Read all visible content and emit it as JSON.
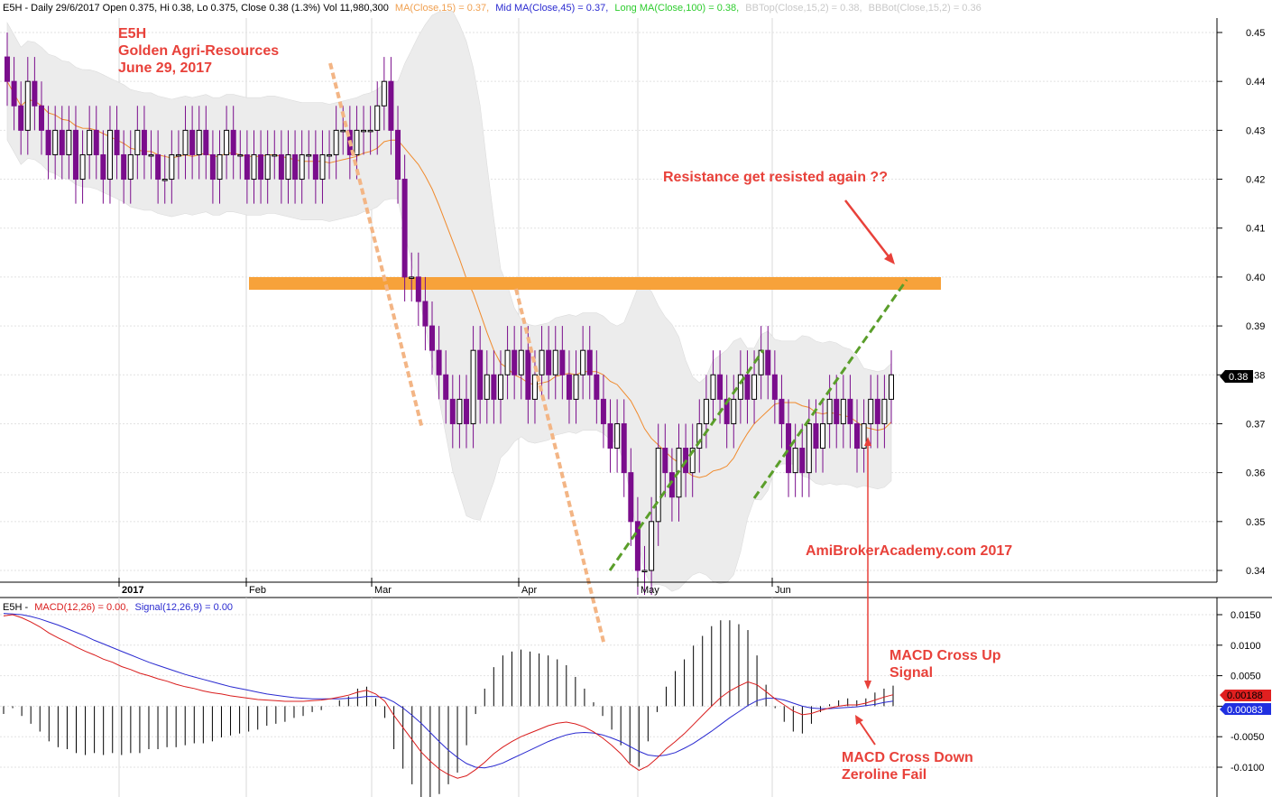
{
  "header": {
    "prefix": "E5H - Daily 29/6/2017 Open 0.375, Hi 0.38, Lo 0.375, Close 0.38 (1.3%) Vol 11,980,300",
    "ma15": "MA(Close,15) = 0.37,",
    "ma45": "Mid MA(Close,45) = 0.37,",
    "ma100": "Long MA(Close,100) = 0.38,",
    "bbtop": "BBTop(Close,15,2) = 0.38,",
    "bbbot": "BBBot(Close,15,2) = 0.36"
  },
  "macd_header": {
    "prefix": "E5H -",
    "macd": "MACD(12,26) = 0.00,",
    "signal": "Signal(12,26,9) = 0.00"
  },
  "colors": {
    "candle_down": "#7a0d8c",
    "candle_up": "#000000",
    "ma15": "#f08a2c",
    "bb_fill": "#ececec",
    "resistance": "#f7a23a",
    "trend_green": "#5a9e2a",
    "trend_orange": "#f3b585",
    "macd": "#d91c1c",
    "signal": "#2a2ad0",
    "annotation": "#e8413a"
  },
  "annotations": {
    "symbol": "E5H",
    "company": "Golden Agri-Resources",
    "date": "June 29, 2017",
    "resistance": "Resistance get resisted again ??",
    "site": "AmiBrokerAcademy.com  2017",
    "cross_up_1": "MACD Cross Up",
    "cross_up_2": "Signal",
    "cross_down_1": "MACD Cross Down",
    "cross_down_2": "Zeroline Fail"
  },
  "chart_data": [
    {
      "type": "candlestick",
      "title": "E5H - Daily 29/6/2017",
      "y_axis_side": "right",
      "ylim": [
        0.335,
        0.455
      ],
      "y_ticks": [
        "0.45",
        "0.44",
        "0.43",
        "0.42",
        "0.41",
        "0.40",
        "0.39",
        "0.38",
        "0.37",
        "0.36",
        "0.35",
        "0.34"
      ],
      "x_labels": [
        "2017",
        "Feb",
        "Mar",
        "Apr",
        "May",
        "Jun"
      ],
      "last_price_label": "0.38",
      "resistance_level": 0.399,
      "close_prices": [
        0.44,
        0.435,
        0.43,
        0.44,
        0.435,
        0.43,
        0.425,
        0.43,
        0.425,
        0.43,
        0.42,
        0.425,
        0.43,
        0.425,
        0.42,
        0.43,
        0.425,
        0.42,
        0.425,
        0.43,
        0.425,
        0.425,
        0.42,
        0.42,
        0.425,
        0.425,
        0.43,
        0.425,
        0.43,
        0.425,
        0.42,
        0.425,
        0.43,
        0.425,
        0.425,
        0.42,
        0.425,
        0.42,
        0.425,
        0.425,
        0.42,
        0.425,
        0.42,
        0.425,
        0.425,
        0.42,
        0.425,
        0.425,
        0.43,
        0.43,
        0.425,
        0.43,
        0.43,
        0.43,
        0.435,
        0.44,
        0.43,
        0.42,
        0.4,
        0.4,
        0.395,
        0.39,
        0.385,
        0.38,
        0.375,
        0.37,
        0.375,
        0.37,
        0.385,
        0.375,
        0.38,
        0.375,
        0.38,
        0.385,
        0.38,
        0.385,
        0.375,
        0.38,
        0.385,
        0.38,
        0.385,
        0.38,
        0.375,
        0.38,
        0.385,
        0.38,
        0.375,
        0.37,
        0.365,
        0.37,
        0.36,
        0.35,
        0.34,
        0.34,
        0.35,
        0.365,
        0.36,
        0.355,
        0.365,
        0.36,
        0.365,
        0.37,
        0.375,
        0.38,
        0.375,
        0.37,
        0.375,
        0.38,
        0.375,
        0.38,
        0.385,
        0.38,
        0.375,
        0.37,
        0.36,
        0.365,
        0.36,
        0.37,
        0.365,
        0.37,
        0.375,
        0.37,
        0.375,
        0.37,
        0.365,
        0.37,
        0.375,
        0.37,
        0.375,
        0.38
      ],
      "series": [
        {
          "name": "MA(Close,15)",
          "color": "#f08a2c"
        },
        {
          "name": "BBTop(Close,15,2)"
        },
        {
          "name": "BBBot(Close,15,2)"
        }
      ]
    },
    {
      "type": "line",
      "title": "E5H - MACD(12,26) = 0.00, Signal(12,26,9) = 0.00",
      "ylim": [
        -0.0125,
        0.0175
      ],
      "y_ticks": [
        "0.0150",
        "0.0100",
        "0.0050",
        "0.0000",
        "-0.0050",
        "-0.0100"
      ],
      "macd_label": "0.00188",
      "signal_label": "0.00083",
      "series": [
        {
          "name": "MACD(12,26)",
          "color": "#d91c1c",
          "values": [
            0.0148,
            0.015,
            0.0145,
            0.0138,
            0.013,
            0.012,
            0.0112,
            0.0105,
            0.0097,
            0.009,
            0.0084,
            0.0077,
            0.0072,
            0.0065,
            0.006,
            0.0054,
            0.005,
            0.0045,
            0.0041,
            0.0036,
            0.0032,
            0.0029,
            0.0025,
            0.0022,
            0.002,
            0.0017,
            0.0015,
            0.0013,
            0.0011,
            0.001,
            0.0009,
            0.0008,
            0.0008,
            0.0008,
            0.0009,
            0.001,
            0.0012,
            0.0015,
            0.0018,
            0.0023,
            0.0026,
            0.002,
            0.0008,
            -0.0015,
            -0.0035,
            -0.0055,
            -0.0075,
            -0.009,
            -0.0103,
            -0.0112,
            -0.0118,
            -0.0114,
            -0.0104,
            -0.0092,
            -0.0078,
            -0.0067,
            -0.0058,
            -0.005,
            -0.0044,
            -0.0038,
            -0.0032,
            -0.0028,
            -0.0026,
            -0.0029,
            -0.0034,
            -0.0042,
            -0.0052,
            -0.0064,
            -0.0078,
            -0.0095,
            -0.0105,
            -0.0098,
            -0.0085,
            -0.007,
            -0.0058,
            -0.0045,
            -0.003,
            -0.0015,
            0,
            0.0014,
            0.0025,
            0.0033,
            0.004,
            0.0035,
            0.0024,
            0.0012,
            0.0002,
            -0.0008,
            -0.0014,
            -0.0012,
            -0.0007,
            -0.0003,
            0,
            0.0002,
            0.0002,
            0.0005,
            0.001,
            0.0015,
            0.00188
          ]
        },
        {
          "name": "Signal(12,26,9)",
          "color": "#2a2ad0",
          "values": [
            0.0152,
            0.0151,
            0.015,
            0.0147,
            0.0143,
            0.0138,
            0.0133,
            0.0127,
            0.0121,
            0.0115,
            0.0108,
            0.0102,
            0.0096,
            0.009,
            0.0084,
            0.0078,
            0.0072,
            0.0067,
            0.0062,
            0.0057,
            0.0052,
            0.0048,
            0.0044,
            0.004,
            0.0036,
            0.0032,
            0.0029,
            0.0026,
            0.0023,
            0.002,
            0.0018,
            0.0016,
            0.0014,
            0.0013,
            0.0012,
            0.0012,
            0.0012,
            0.0012,
            0.0013,
            0.0014,
            0.0016,
            0.0016,
            0.0014,
            0.0007,
            -0.0003,
            -0.0015,
            -0.0028,
            -0.0043,
            -0.0058,
            -0.0072,
            -0.0084,
            -0.0094,
            -0.01,
            -0.0101,
            -0.0098,
            -0.0093,
            -0.0086,
            -0.0079,
            -0.0072,
            -0.0065,
            -0.0058,
            -0.0052,
            -0.0047,
            -0.0044,
            -0.0043,
            -0.0044,
            -0.0047,
            -0.0052,
            -0.0058,
            -0.0066,
            -0.0074,
            -0.008,
            -0.0082,
            -0.008,
            -0.0076,
            -0.0069,
            -0.0061,
            -0.0051,
            -0.0041,
            -0.003,
            -0.0019,
            -0.0009,
            0.0001,
            0.0009,
            0.0013,
            0.0013,
            0.001,
            0.0005,
            0,
            -0.0003,
            -0.0004,
            -0.0004,
            -0.0003,
            -0.0002,
            -0.0001,
            0.0001,
            0.0003,
            0.0006,
            0.00083
          ]
        }
      ]
    }
  ]
}
